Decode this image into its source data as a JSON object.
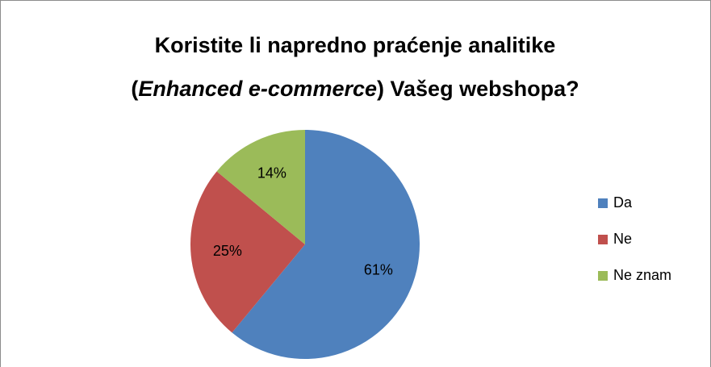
{
  "chart_data": {
    "type": "pie",
    "title": [
      "Koristite li napredno praćenje analitike",
      "(",
      "Enhanced e-commerce",
      ") Vašeg webshopa?"
    ],
    "categories": [
      "Da",
      "Ne",
      "Ne znam"
    ],
    "values": [
      61,
      25,
      14
    ],
    "value_labels": [
      "61%",
      "25%",
      "14%"
    ],
    "colors": [
      "#4f81bd",
      "#c0504d",
      "#9bbb59"
    ],
    "legend": "right"
  }
}
